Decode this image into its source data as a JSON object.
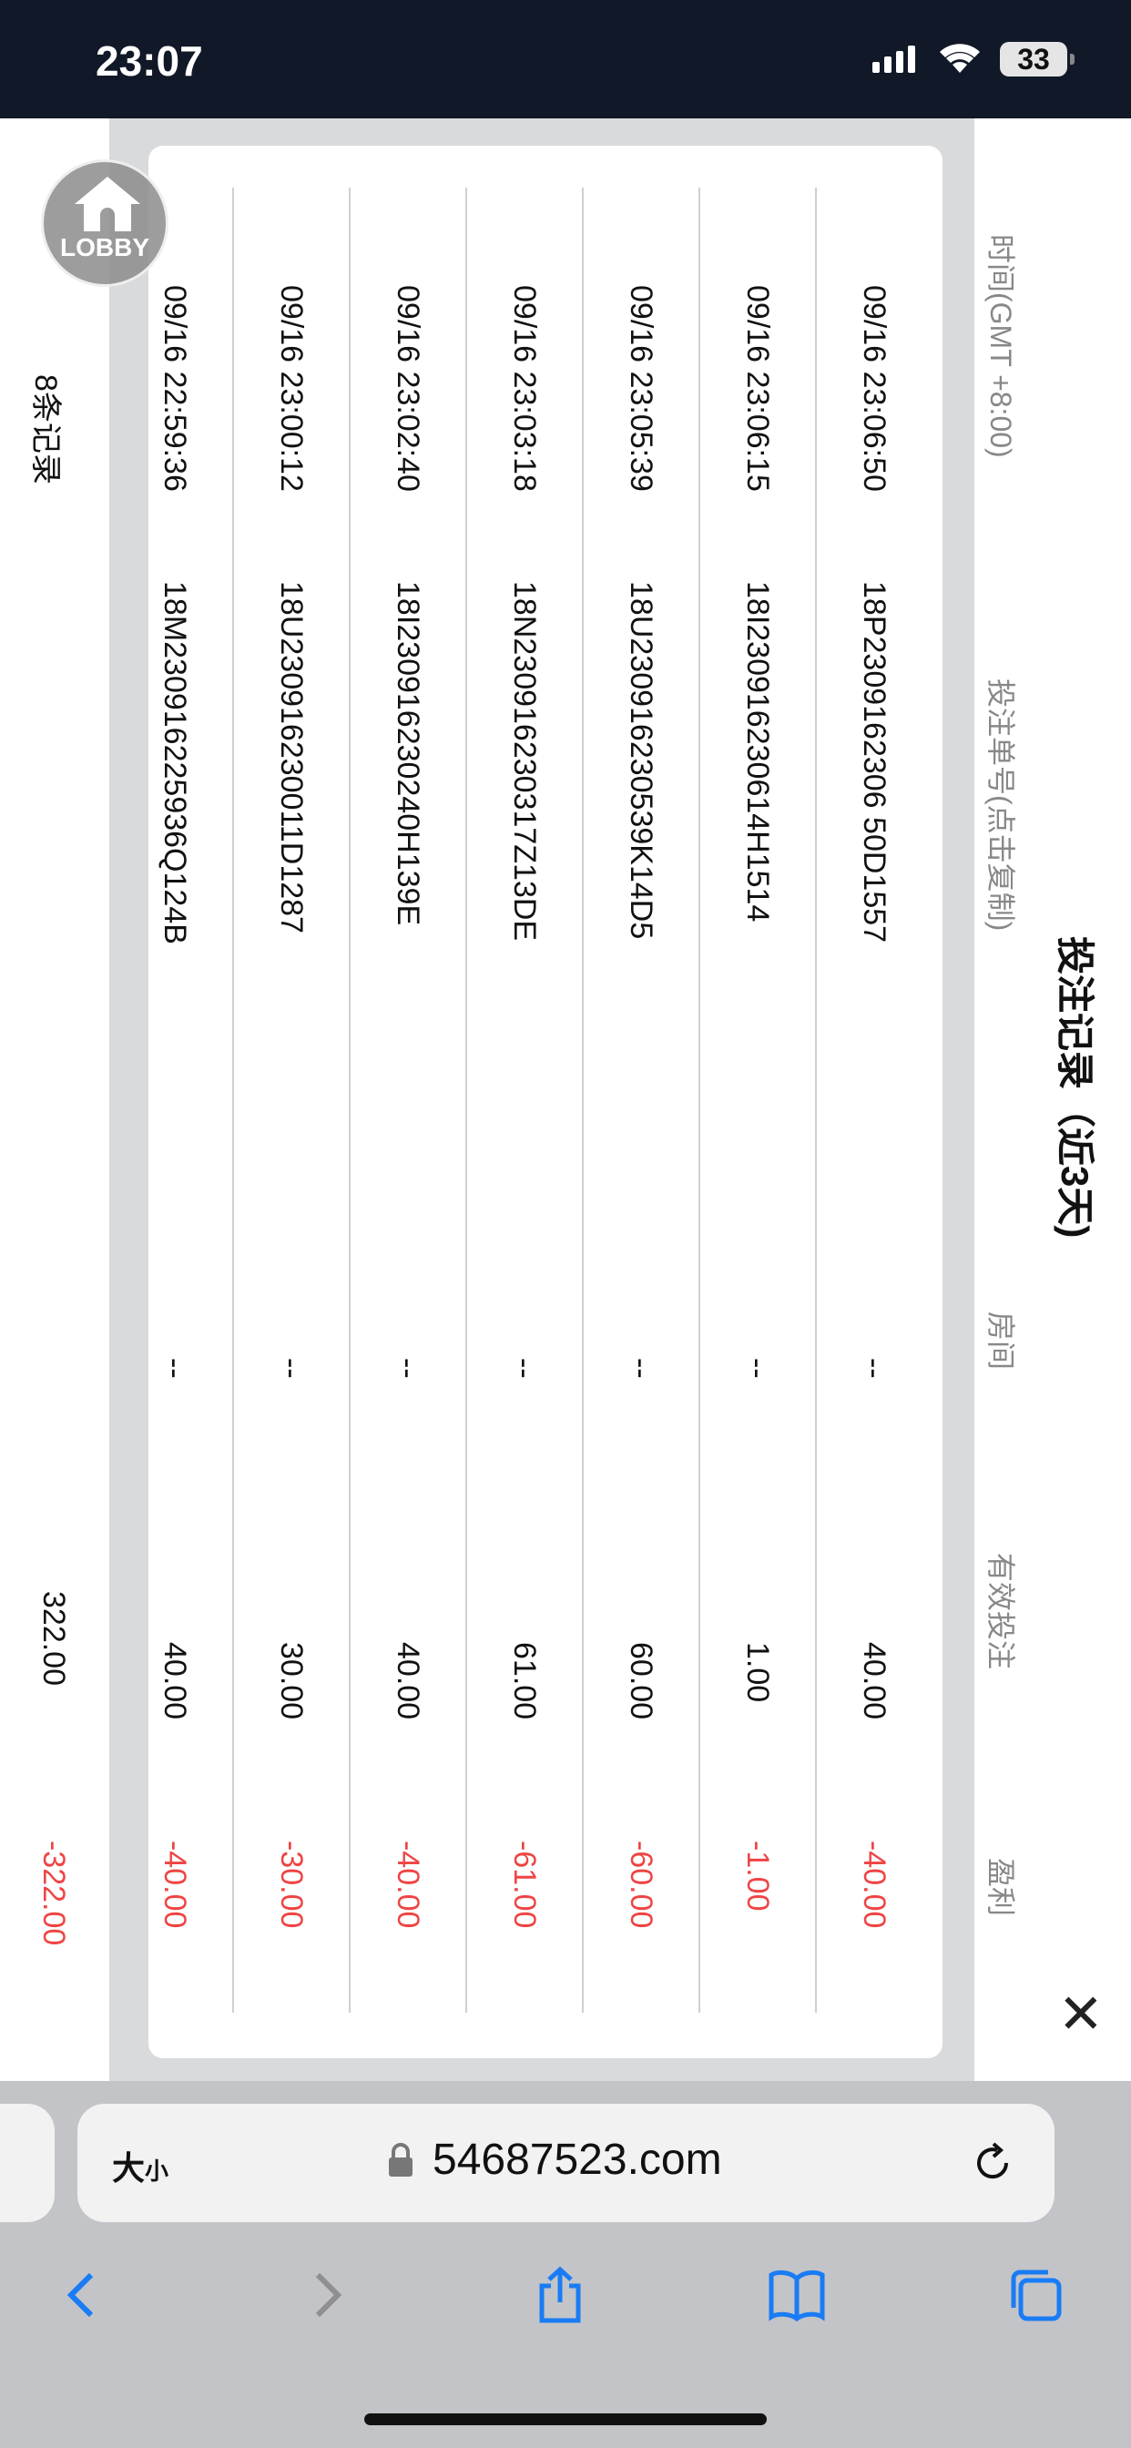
{
  "status_bar": {
    "time": "23:07",
    "battery": "33"
  },
  "dialog": {
    "title": "投注记录（近3天)",
    "columns": [
      "时间(GMT +8:00)",
      "投注单号(点击复制)",
      "房间",
      "有效投注",
      "盈利"
    ],
    "rows": [
      {
        "time": "09/16  23:06:50",
        "id": "18P2309162306 50D1557",
        "room": "--",
        "valid": "40.00",
        "profit": "-40.00"
      },
      {
        "time": "09/16  23:06:15",
        "id": "18I230916230614H1514",
        "room": "--",
        "valid": "1.00",
        "profit": "-1.00"
      },
      {
        "time": "09/16  23:05:39",
        "id": "18U230916230539K14D5",
        "room": "--",
        "valid": "60.00",
        "profit": "-60.00"
      },
      {
        "time": "09/16  23:03:18",
        "id": "18N230916230317Z13DE",
        "room": "--",
        "valid": "61.00",
        "profit": "-61.00"
      },
      {
        "time": "09/16  23:02:40",
        "id": "18I230916230240H139E",
        "room": "--",
        "valid": "40.00",
        "profit": "-40.00"
      },
      {
        "time": "09/16  23:00:12",
        "id": "18U230916230011D1287",
        "room": "--",
        "valid": "30.00",
        "profit": "-30.00"
      },
      {
        "time": "09/16  22:59:36",
        "id": "18M230916225936Q124B",
        "room": "--",
        "valid": "40.00",
        "profit": "-40.00"
      }
    ],
    "footer": {
      "count": "8条记录",
      "valid_total": "322.00",
      "profit_total": "-322.00"
    },
    "negative_color": "#ef4444"
  },
  "lobby": {
    "label": "LOBBY"
  },
  "browser": {
    "text_size_big": "大",
    "text_size_small": "小",
    "domain": "54687523.com"
  }
}
